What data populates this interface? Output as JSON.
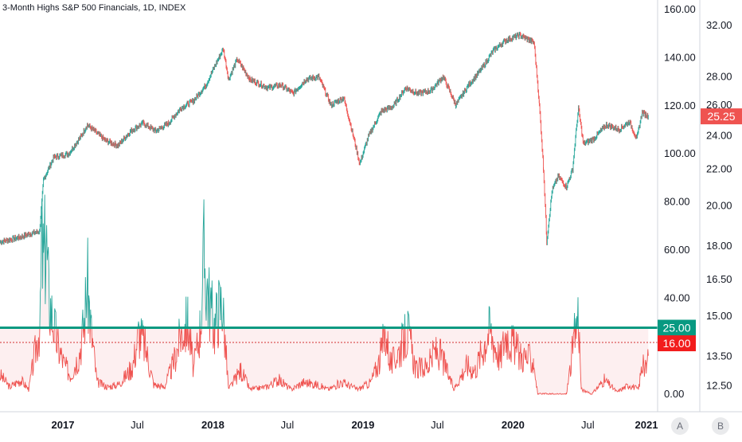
{
  "title": "3-Month Highs S&P 500 Financials, 1D, INDEX",
  "colors": {
    "up": "#26a69a",
    "down": "#ef5350",
    "level_line": "#089981",
    "dotted_line": "#d32f2f",
    "last_price_bg": "#ef5350",
    "level_label_bg": "#089981",
    "dotted_label_bg": "#f21c1c",
    "fill": "#fdeff0",
    "axis_text": "#131722",
    "button_bg": "#e9eaec"
  },
  "axis_buttons": {
    "a": "A",
    "b": "B"
  },
  "x_axis_labels": [
    "2017",
    "Jul",
    "2018",
    "Jul",
    "2019",
    "Jul",
    "2020",
    "Jul",
    "2021"
  ],
  "left_axis_labels": [
    "160.00",
    "140.00",
    "120.00",
    "100.00",
    "80.00",
    "60.00",
    "40.00",
    "20.00",
    "0.00"
  ],
  "right_axis_labels": [
    "32.00",
    "28.00",
    "26.00",
    "24.00",
    "22.00",
    "20.00",
    "18.00",
    "16.50",
    "15.00",
    "13.50",
    "12.50"
  ],
  "price_tag": "25.25",
  "level_tag": "25.00",
  "dotted_tag": "16.00",
  "chart_data": {
    "type": "line",
    "title": "3-Month Highs S&P 500 Financials, 1D, INDEX",
    "x_range": [
      "2016-08",
      "2020-12"
    ],
    "right_axis": {
      "scale": "log",
      "range": [
        12.2,
        33.5
      ],
      "series": [
        {
          "style": "candles",
          "points": [
            [
              "2016-08-01",
              18.2
            ],
            [
              "2016-09-15",
              18.4
            ],
            [
              "2016-10-15",
              18.6
            ],
            [
              "2016-11-05",
              18.7
            ],
            [
              "2016-11-15",
              21.4
            ],
            [
              "2016-12-10",
              22.7
            ],
            [
              "2017-01-15",
              22.9
            ],
            [
              "2017-02-15",
              24.0
            ],
            [
              "2017-03-01",
              24.7
            ],
            [
              "2017-04-15",
              23.7
            ],
            [
              "2017-05-15",
              23.4
            ],
            [
              "2017-06-15",
              24.3
            ],
            [
              "2017-07-15",
              24.8
            ],
            [
              "2017-08-15",
              24.3
            ],
            [
              "2017-09-15",
              24.8
            ],
            [
              "2017-10-15",
              25.8
            ],
            [
              "2017-11-15",
              26.3
            ],
            [
              "2017-12-15",
              27.4
            ],
            [
              "2018-01-26",
              30.1
            ],
            [
              "2018-02-08",
              27.8
            ],
            [
              "2018-03-01",
              29.3
            ],
            [
              "2018-04-01",
              27.8
            ],
            [
              "2018-05-15",
              27.2
            ],
            [
              "2018-06-15",
              27.4
            ],
            [
              "2018-07-15",
              26.8
            ],
            [
              "2018-08-15",
              27.8
            ],
            [
              "2018-09-15",
              28.0
            ],
            [
              "2018-10-15",
              26.0
            ],
            [
              "2018-11-15",
              26.5
            ],
            [
              "2018-12-24",
              22.3
            ],
            [
              "2019-01-15",
              24.0
            ],
            [
              "2019-02-15",
              25.6
            ],
            [
              "2019-03-15",
              25.9
            ],
            [
              "2019-04-15",
              27.2
            ],
            [
              "2019-05-15",
              26.8
            ],
            [
              "2019-06-15",
              27.0
            ],
            [
              "2019-07-15",
              28.0
            ],
            [
              "2019-08-15",
              26.0
            ],
            [
              "2019-09-15",
              27.4
            ],
            [
              "2019-10-15",
              28.5
            ],
            [
              "2019-11-15",
              30.0
            ],
            [
              "2019-12-15",
              30.8
            ],
            [
              "2020-01-17",
              31.2
            ],
            [
              "2020-02-10",
              30.8
            ],
            [
              "2020-02-21",
              30.6
            ],
            [
              "2020-03-05",
              26.0
            ],
            [
              "2020-03-15",
              22.0
            ],
            [
              "2020-03-23",
              18.2
            ],
            [
              "2020-04-05",
              20.8
            ],
            [
              "2020-04-20",
              21.6
            ],
            [
              "2020-05-10",
              21.0
            ],
            [
              "2020-05-25",
              22.0
            ],
            [
              "2020-06-08",
              25.8
            ],
            [
              "2020-06-20",
              23.5
            ],
            [
              "2020-07-15",
              23.8
            ],
            [
              "2020-08-15",
              24.7
            ],
            [
              "2020-09-15",
              24.4
            ],
            [
              "2020-10-10",
              24.9
            ],
            [
              "2020-10-28",
              23.8
            ],
            [
              "2020-11-10",
              25.5
            ],
            [
              "2020-11-25",
              25.25
            ]
          ]
        }
      ]
    },
    "left_axis": {
      "range": [
        -5,
        165
      ],
      "series": [
        {
          "name": "3-Month Highs",
          "points": [
            [
              "2016-08-01",
              8
            ],
            [
              "2016-08-25",
              3
            ],
            [
              "2016-09-20",
              6
            ],
            [
              "2016-10-10",
              2
            ],
            [
              "2016-11-07",
              30
            ],
            [
              "2016-11-10",
              62
            ],
            [
              "2016-11-15",
              54
            ],
            [
              "2016-11-21",
              65
            ],
            [
              "2016-11-28",
              40
            ],
            [
              "2016-12-05",
              34
            ],
            [
              "2016-12-12",
              27
            ],
            [
              "2016-12-20",
              20
            ],
            [
              "2017-01-05",
              12
            ],
            [
              "2017-01-20",
              8
            ],
            [
              "2017-02-10",
              17
            ],
            [
              "2017-02-22",
              30
            ],
            [
              "2017-03-01",
              48
            ],
            [
              "2017-03-10",
              28
            ],
            [
              "2017-03-25",
              5
            ],
            [
              "2017-04-20",
              3
            ],
            [
              "2017-05-15",
              4
            ],
            [
              "2017-06-05",
              8
            ],
            [
              "2017-06-20",
              12
            ],
            [
              "2017-07-05",
              26
            ],
            [
              "2017-07-20",
              20
            ],
            [
              "2017-08-10",
              4
            ],
            [
              "2017-09-05",
              3
            ],
            [
              "2017-09-25",
              12
            ],
            [
              "2017-10-05",
              18
            ],
            [
              "2017-10-15",
              25
            ],
            [
              "2017-11-01",
              30
            ],
            [
              "2017-11-15",
              10
            ],
            [
              "2017-12-01",
              28
            ],
            [
              "2017-12-10",
              58
            ],
            [
              "2017-12-20",
              42
            ],
            [
              "2018-01-05",
              28
            ],
            [
              "2018-01-15",
              36
            ],
            [
              "2018-01-24",
              38
            ],
            [
              "2018-02-08",
              2
            ],
            [
              "2018-03-10",
              10
            ],
            [
              "2018-04-01",
              2
            ],
            [
              "2018-05-10",
              3
            ],
            [
              "2018-06-10",
              6
            ],
            [
              "2018-07-10",
              2
            ],
            [
              "2018-08-10",
              5
            ],
            [
              "2018-09-10",
              4
            ],
            [
              "2018-10-10",
              2
            ],
            [
              "2018-11-10",
              5
            ],
            [
              "2018-12-20",
              2
            ],
            [
              "2019-01-20",
              5
            ],
            [
              "2019-02-10",
              14
            ],
            [
              "2019-02-25",
              26
            ],
            [
              "2019-03-10",
              12
            ],
            [
              "2019-04-10",
              22
            ],
            [
              "2019-04-20",
              26
            ],
            [
              "2019-05-10",
              10
            ],
            [
              "2019-06-10",
              12
            ],
            [
              "2019-06-25",
              18
            ],
            [
              "2019-07-10",
              16
            ],
            [
              "2019-08-10",
              2
            ],
            [
              "2019-09-10",
              12
            ],
            [
              "2019-10-01",
              10
            ],
            [
              "2019-10-25",
              22
            ],
            [
              "2019-11-05",
              27
            ],
            [
              "2019-11-15",
              22
            ],
            [
              "2019-12-01",
              15
            ],
            [
              "2019-12-15",
              26
            ],
            [
              "2020-01-10",
              18
            ],
            [
              "2020-01-20",
              16
            ],
            [
              "2020-02-20",
              14
            ],
            [
              "2020-03-01",
              0
            ],
            [
              "2020-04-10",
              0
            ],
            [
              "2020-05-10",
              0
            ],
            [
              "2020-06-08",
              35
            ],
            [
              "2020-06-15",
              2
            ],
            [
              "2020-07-10",
              0
            ],
            [
              "2020-08-10",
              6
            ],
            [
              "2020-09-10",
              1
            ],
            [
              "2020-10-10",
              4
            ],
            [
              "2020-11-01",
              2
            ],
            [
              "2020-11-10",
              12
            ],
            [
              "2020-11-20",
              10
            ],
            [
              "2020-11-25",
              16
            ]
          ]
        }
      ]
    },
    "horizontal_lines": [
      {
        "axis": "right",
        "value": 14.55,
        "style": "solid"
      },
      {
        "axis": "right",
        "value": 14.0,
        "style": "dotted"
      }
    ]
  }
}
